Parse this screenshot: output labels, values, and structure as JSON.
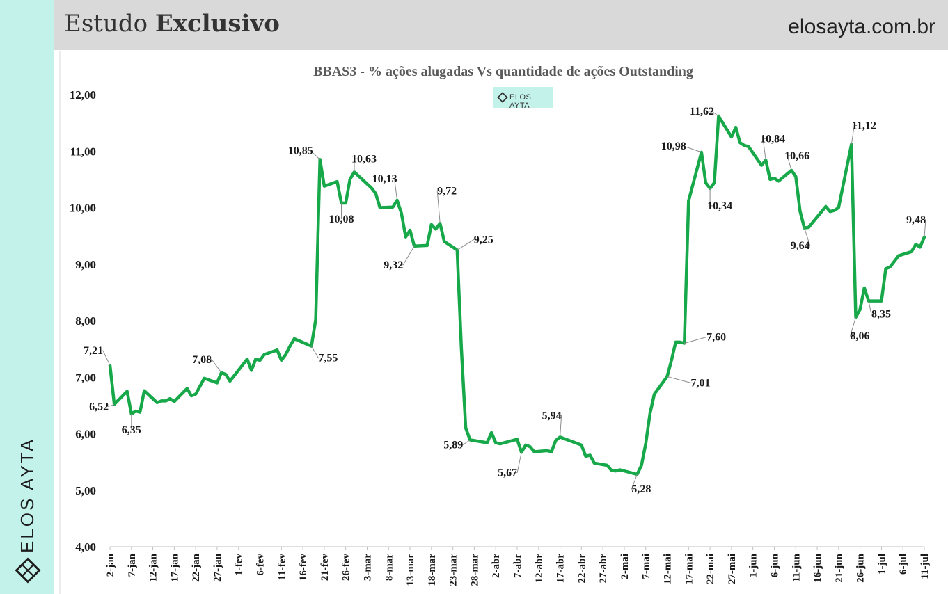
{
  "header": {
    "title_regular": "Estudo",
    "title_bold": "Exclusivo",
    "site": "elosayta.com.br"
  },
  "sidebar": {
    "brand_text": "ELOS AYTA"
  },
  "badge": {
    "text": "ELOS AYTA"
  },
  "colors": {
    "line": "#17a84a",
    "sidebar": "#c3f2ea",
    "header": "#d9d9d9"
  },
  "chart_data": {
    "type": "line",
    "title": "BBAS3 - % ações alugadas Vs quantidade de ações Outstanding",
    "ylim": [
      4,
      12
    ],
    "yticks": [
      "4,00",
      "5,00",
      "6,00",
      "7,00",
      "8,00",
      "9,00",
      "10,00",
      "11,00",
      "12,00"
    ],
    "xticks": [
      "2-jan",
      "7-jan",
      "12-jan",
      "17-jan",
      "22-jan",
      "27-jan",
      "1-fev",
      "6-fev",
      "11-fev",
      "16-fev",
      "21-fev",
      "26-fev",
      "3-mar",
      "8-mar",
      "13-mar",
      "18-mar",
      "23-mar",
      "28-mar",
      "2-abr",
      "7-abr",
      "12-abr",
      "17-abr",
      "22-abr",
      "27-abr",
      "2-mai",
      "7-mai",
      "12-mai",
      "17-mai",
      "22-mai",
      "27-mai",
      "1-jun",
      "6-jun",
      "11-jun",
      "16-jun",
      "21-jun",
      "26-jun",
      "1-jul",
      "6-jul",
      "11-jul"
    ],
    "x_day_range": [
      0,
      190
    ],
    "series": [
      {
        "points": [
          [
            0,
            7.21
          ],
          [
            1,
            6.52
          ],
          [
            4,
            6.75
          ],
          [
            5,
            6.35
          ],
          [
            6,
            6.4
          ],
          [
            7,
            6.38
          ],
          [
            8,
            6.76
          ],
          [
            11,
            6.55
          ],
          [
            12,
            6.58
          ],
          [
            13,
            6.58
          ],
          [
            14,
            6.62
          ],
          [
            15,
            6.57
          ],
          [
            18,
            6.8
          ],
          [
            19,
            6.67
          ],
          [
            20,
            6.7
          ],
          [
            22,
            6.98
          ],
          [
            25,
            6.9
          ],
          [
            26,
            7.08
          ],
          [
            27,
            7.05
          ],
          [
            28,
            6.93
          ],
          [
            32,
            7.32
          ],
          [
            33,
            7.12
          ],
          [
            34,
            7.32
          ],
          [
            35,
            7.3
          ],
          [
            36,
            7.4
          ],
          [
            39,
            7.48
          ],
          [
            40,
            7.3
          ],
          [
            41,
            7.4
          ],
          [
            42,
            7.55
          ],
          [
            43,
            7.68
          ],
          [
            47,
            7.55
          ],
          [
            48,
            8.02
          ],
          [
            49,
            10.85
          ],
          [
            50,
            10.38
          ],
          [
            53,
            10.46
          ],
          [
            54,
            10.08
          ],
          [
            55,
            10.08
          ],
          [
            56,
            10.5
          ],
          [
            57,
            10.63
          ],
          [
            61,
            10.35
          ],
          [
            62,
            10.25
          ],
          [
            63,
            10.0
          ],
          [
            66,
            10.01
          ],
          [
            67,
            10.13
          ],
          [
            68,
            9.9
          ],
          [
            69,
            9.48
          ],
          [
            70,
            9.6
          ],
          [
            71,
            9.32
          ],
          [
            74,
            9.33
          ],
          [
            75,
            9.7
          ],
          [
            76,
            9.62
          ],
          [
            77,
            9.72
          ],
          [
            78,
            9.4
          ],
          [
            81,
            9.25
          ],
          [
            82,
            7.5
          ],
          [
            83,
            6.1
          ],
          [
            84,
            5.89
          ],
          [
            88,
            5.84
          ],
          [
            89,
            6.02
          ],
          [
            90,
            5.84
          ],
          [
            91,
            5.82
          ],
          [
            95,
            5.9
          ],
          [
            96,
            5.67
          ],
          [
            97,
            5.8
          ],
          [
            98,
            5.77
          ],
          [
            99,
            5.68
          ],
          [
            102,
            5.7
          ],
          [
            103,
            5.68
          ],
          [
            104,
            5.88
          ],
          [
            105,
            5.94
          ],
          [
            110,
            5.8
          ],
          [
            111,
            5.6
          ],
          [
            112,
            5.62
          ],
          [
            113,
            5.48
          ],
          [
            116,
            5.44
          ],
          [
            117,
            5.35
          ],
          [
            118,
            5.34
          ],
          [
            119,
            5.36
          ],
          [
            123,
            5.28
          ],
          [
            124,
            5.44
          ],
          [
            125,
            5.82
          ],
          [
            126,
            6.36
          ],
          [
            127,
            6.7
          ],
          [
            130,
            7.01
          ],
          [
            131,
            7.3
          ],
          [
            132,
            7.62
          ],
          [
            133,
            7.62
          ],
          [
            134,
            7.6
          ],
          [
            135,
            10.12
          ],
          [
            138,
            10.98
          ],
          [
            139,
            10.44
          ],
          [
            140,
            10.34
          ],
          [
            141,
            10.44
          ],
          [
            142,
            11.62
          ],
          [
            145,
            11.25
          ],
          [
            146,
            11.42
          ],
          [
            147,
            11.15
          ],
          [
            148,
            11.1
          ],
          [
            149,
            11.08
          ],
          [
            152,
            10.75
          ],
          [
            153,
            10.84
          ],
          [
            154,
            10.5
          ],
          [
            155,
            10.52
          ],
          [
            156,
            10.47
          ],
          [
            159,
            10.66
          ],
          [
            160,
            10.55
          ],
          [
            161,
            9.94
          ],
          [
            162,
            9.64
          ],
          [
            163,
            9.65
          ],
          [
            167,
            10.02
          ],
          [
            168,
            9.93
          ],
          [
            169,
            9.95
          ],
          [
            170,
            10.0
          ],
          [
            173,
            11.12
          ],
          [
            174,
            8.06
          ],
          [
            175,
            8.2
          ],
          [
            176,
            8.58
          ],
          [
            177,
            8.35
          ],
          [
            180,
            8.35
          ],
          [
            181,
            8.92
          ],
          [
            182,
            8.95
          ],
          [
            184,
            9.15
          ],
          [
            187,
            9.22
          ],
          [
            188,
            9.35
          ],
          [
            189,
            9.3
          ],
          [
            190,
            9.48
          ]
        ]
      }
    ],
    "labels": [
      {
        "text": "7,21",
        "day": 0,
        "value": 7.21
      },
      {
        "text": "6,52",
        "day": 1,
        "value": 6.52
      },
      {
        "text": "6,35",
        "day": 5,
        "value": 6.35
      },
      {
        "text": "7,08",
        "day": 26,
        "value": 7.08
      },
      {
        "text": "7,55",
        "day": 47,
        "value": 7.55
      },
      {
        "text": "10,85",
        "day": 49,
        "value": 10.85
      },
      {
        "text": "10,08",
        "day": 54,
        "value": 10.08
      },
      {
        "text": "10,63",
        "day": 57,
        "value": 10.63
      },
      {
        "text": "10,13",
        "day": 67,
        "value": 10.13
      },
      {
        "text": "9,32",
        "day": 71,
        "value": 9.32
      },
      {
        "text": "9,72",
        "day": 77,
        "value": 9.72
      },
      {
        "text": "9,25",
        "day": 81,
        "value": 9.25
      },
      {
        "text": "5,89",
        "day": 84,
        "value": 5.89
      },
      {
        "text": "5,67",
        "day": 96,
        "value": 5.67
      },
      {
        "text": "5,94",
        "day": 105,
        "value": 5.94
      },
      {
        "text": "5,28",
        "day": 123,
        "value": 5.28
      },
      {
        "text": "7,01",
        "day": 130,
        "value": 7.01
      },
      {
        "text": "7,60",
        "day": 134,
        "value": 7.6
      },
      {
        "text": "10,98",
        "day": 138,
        "value": 10.98
      },
      {
        "text": "10,34",
        "day": 140,
        "value": 10.34
      },
      {
        "text": "11,62",
        "day": 142,
        "value": 11.62
      },
      {
        "text": "10,84",
        "day": 153,
        "value": 10.84
      },
      {
        "text": "10,66",
        "day": 159,
        "value": 10.66
      },
      {
        "text": "9,64",
        "day": 162,
        "value": 9.64
      },
      {
        "text": "11,12",
        "day": 173,
        "value": 11.12
      },
      {
        "text": "8,06",
        "day": 174,
        "value": 8.06
      },
      {
        "text": "8,35",
        "day": 177,
        "value": 8.35
      },
      {
        "text": "9,48",
        "day": 190,
        "value": 9.48
      }
    ]
  }
}
